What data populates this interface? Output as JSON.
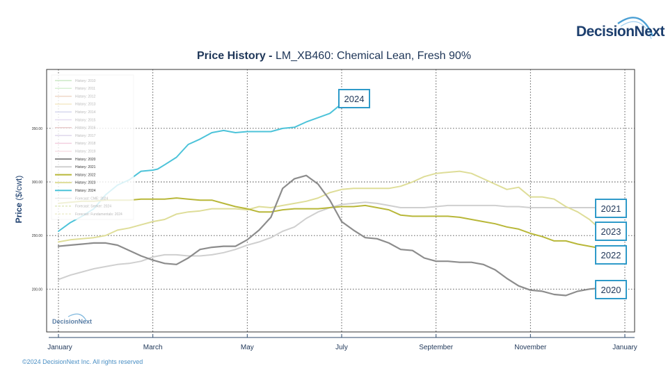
{
  "brand": {
    "name": "DecisionNext",
    "watermark": "DecisionNext"
  },
  "title": {
    "bold": "Price History -",
    "rest": "LM_XB460: Chemical Lean, Fresh 90%"
  },
  "footer": {
    "copyright": "©2024 DecisionNext Inc. All rights reserved"
  },
  "chart_data": {
    "type": "line",
    "title": "Price History - LM_XB460: Chemical Lean, Fresh 90%",
    "ylabel": "Price",
    "yunit": "($/cwt)",
    "xlabel": "",
    "xlim": [
      0,
      12
    ],
    "ylim": [
      160,
      405
    ],
    "yticks": [
      200,
      250,
      300,
      350
    ],
    "ytick_labels": [
      "200.00",
      "250.00",
      "300.00",
      "350.00"
    ],
    "xticks": [
      0,
      2,
      4,
      6,
      8,
      10,
      12
    ],
    "xtick_labels": [
      "January",
      "March",
      "May",
      "July",
      "September",
      "November",
      "January"
    ],
    "grid": true,
    "legend_position": "top-left",
    "legend": [
      {
        "label": "History: 2010",
        "color": "#b9e0b3",
        "dash": false,
        "faded": true
      },
      {
        "label": "History: 2011",
        "color": "#c9ebc4",
        "dash": false,
        "faded": true
      },
      {
        "label": "History: 2012",
        "color": "#eac9b3",
        "dash": false,
        "faded": true
      },
      {
        "label": "History: 2013",
        "color": "#f1e2b5",
        "dash": false,
        "faded": true
      },
      {
        "label": "History: 2014",
        "color": "#c8cbe8",
        "dash": false,
        "faded": true
      },
      {
        "label": "History: 2015",
        "color": "#dcd2ec",
        "dash": false,
        "faded": true
      },
      {
        "label": "History: 2016",
        "color": "#e3bcbc",
        "dash": false,
        "faded": true
      },
      {
        "label": "History: 2017",
        "color": "#d4cbe6",
        "dash": false,
        "faded": true
      },
      {
        "label": "History: 2018",
        "color": "#efbfd6",
        "dash": false,
        "faded": true
      },
      {
        "label": "History: 2019",
        "color": "#f4d6de",
        "dash": false,
        "faded": true
      },
      {
        "label": "History: 2020",
        "color": "#8c8c8c",
        "dash": false,
        "faded": false
      },
      {
        "label": "History: 2021",
        "color": "#cfcfcf",
        "dash": false,
        "faded": false
      },
      {
        "label": "History: 2022",
        "color": "#b8b738",
        "dash": false,
        "faded": false
      },
      {
        "label": "History: 2023",
        "color": "#dedd98",
        "dash": false,
        "faded": false
      },
      {
        "label": "History: 2024",
        "color": "#4cc3d9",
        "dash": false,
        "faded": false
      },
      {
        "label": "Forecast: CME: 2024",
        "color": "#e2e2e2",
        "dash": false,
        "faded": true
      },
      {
        "label": "Forecast: Seeker: 2024",
        "color": "#d5e3a8",
        "dash": true,
        "faded": true
      },
      {
        "label": "Forecast: Fundamentals: 2024",
        "color": "#e7e7c0",
        "dash": true,
        "faded": true
      }
    ],
    "series": [
      {
        "name": "2024",
        "color": "#4cc3d9",
        "width": 2,
        "x": [
          0,
          0.25,
          0.5,
          0.75,
          1,
          1.25,
          1.5,
          1.75,
          2,
          2.1,
          2.25,
          2.5,
          2.75,
          3,
          3.25,
          3.5,
          3.75,
          4,
          4.25,
          4.5,
          4.75,
          5,
          5.25,
          5.5,
          5.75,
          6.0
        ],
        "y": [
          254,
          262,
          268,
          275,
          288,
          297,
          302,
          310,
          311,
          312,
          316,
          323,
          335,
          340,
          346,
          348,
          346,
          347,
          347,
          347,
          350,
          351,
          356,
          360,
          364,
          373
        ]
      },
      {
        "name": "2021",
        "color": "#cfcfcf",
        "width": 2,
        "x": [
          0,
          0.25,
          0.5,
          0.75,
          1,
          1.25,
          1.5,
          1.75,
          2,
          2.25,
          2.5,
          2.75,
          3,
          3.25,
          3.5,
          3.75,
          4,
          4.25,
          4.5,
          4.75,
          5,
          5.25,
          5.5,
          5.75,
          6,
          6.25,
          6.5,
          6.75,
          7,
          7.25,
          7.5,
          7.75,
          8,
          8.25,
          8.5,
          8.75,
          9,
          9.25,
          9.5,
          9.75,
          10,
          10.25,
          10.5,
          10.75,
          11,
          11.25,
          11.5,
          11.75
        ],
        "y": [
          209,
          213,
          216,
          219,
          221,
          223,
          224,
          226,
          230,
          232,
          232,
          231,
          231,
          232,
          234,
          237,
          241,
          244,
          248,
          254,
          258,
          266,
          272,
          276,
          279,
          280,
          281,
          280,
          278,
          276,
          276,
          276,
          277,
          278,
          278,
          278,
          278,
          278,
          277,
          277,
          276,
          276,
          276,
          276,
          276,
          276,
          276,
          276
        ]
      },
      {
        "name": "2023",
        "color": "#dedd98",
        "width": 2,
        "x": [
          0,
          0.25,
          0.5,
          0.75,
          1,
          1.25,
          1.5,
          1.75,
          2,
          2.25,
          2.5,
          2.75,
          3,
          3.25,
          3.5,
          3.75,
          4,
          4.25,
          4.5,
          4.75,
          5,
          5.25,
          5.5,
          5.75,
          6,
          6.25,
          6.5,
          6.75,
          7,
          7.25,
          7.5,
          7.75,
          8,
          8.25,
          8.5,
          8.75,
          9,
          9.25,
          9.5,
          9.75,
          10,
          10.25,
          10.5,
          10.75,
          11,
          11.25,
          11.5,
          11.75
        ],
        "y": [
          244,
          246,
          247,
          248,
          250,
          255,
          257,
          260,
          263,
          265,
          270,
          272,
          273,
          275,
          275,
          275,
          274,
          277,
          276,
          278,
          280,
          282,
          285,
          290,
          293,
          294,
          294,
          294,
          294,
          296,
          300,
          305,
          308,
          309,
          310,
          308,
          303,
          298,
          293,
          295,
          286,
          286,
          284,
          277,
          272,
          265,
          255,
          247
        ]
      },
      {
        "name": "2022",
        "color": "#b8b738",
        "width": 2,
        "x": [
          0,
          0.25,
          0.5,
          0.75,
          1,
          1.25,
          1.5,
          1.75,
          2,
          2.25,
          2.5,
          2.75,
          3,
          3.25,
          3.5,
          3.75,
          4,
          4.25,
          4.5,
          4.75,
          5,
          5.25,
          5.5,
          5.75,
          6,
          6.25,
          6.5,
          6.75,
          7,
          7.25,
          7.5,
          7.75,
          8,
          8.25,
          8.5,
          8.75,
          9,
          9.25,
          9.5,
          9.75,
          10,
          10.25,
          10.5,
          10.75,
          11,
          11.25,
          11.5,
          11.75
        ],
        "y": [
          280,
          281,
          282,
          282,
          283,
          283,
          283,
          284,
          284,
          284,
          285,
          284,
          283,
          283,
          280,
          277,
          275,
          272,
          272,
          274,
          275,
          275,
          275,
          276,
          277,
          277,
          278,
          276,
          274,
          269,
          268,
          268,
          268,
          268,
          267,
          265,
          263,
          261,
          258,
          256,
          252,
          249,
          245,
          245,
          242,
          240,
          238,
          239
        ]
      },
      {
        "name": "2020",
        "color": "#8c8c8c",
        "width": 2.2,
        "x": [
          0,
          0.25,
          0.5,
          0.75,
          1,
          1.25,
          1.5,
          1.75,
          2,
          2.25,
          2.5,
          2.75,
          3,
          3.25,
          3.5,
          3.75,
          4,
          4.25,
          4.5,
          4.75,
          5,
          5.25,
          5.5,
          5.75,
          6,
          6.25,
          6.5,
          6.75,
          7,
          7.25,
          7.5,
          7.75,
          8,
          8.25,
          8.5,
          8.75,
          9,
          9.25,
          9.5,
          9.75,
          10,
          10.25,
          10.5,
          10.75,
          11,
          11.25,
          11.5,
          11.75
        ],
        "y": [
          240,
          241,
          242,
          243,
          243,
          241,
          236,
          231,
          227,
          224,
          223,
          229,
          237,
          239,
          240,
          240,
          246,
          255,
          267,
          294,
          303,
          306,
          298,
          283,
          263,
          255,
          248,
          247,
          243,
          237,
          236,
          229,
          226,
          226,
          225,
          225,
          223,
          218,
          210,
          203,
          199,
          198,
          195,
          194,
          198,
          200,
          201,
          202
        ]
      }
    ],
    "annotations": [
      {
        "text": "2024",
        "x": 6.0,
        "y": 373
      },
      {
        "text": "2021",
        "x": 11.75,
        "y": 276
      },
      {
        "text": "2023",
        "x": 11.75,
        "y": 256
      },
      {
        "text": "2022",
        "x": 11.75,
        "y": 236
      },
      {
        "text": "2020",
        "x": 11.75,
        "y": 202
      }
    ]
  }
}
